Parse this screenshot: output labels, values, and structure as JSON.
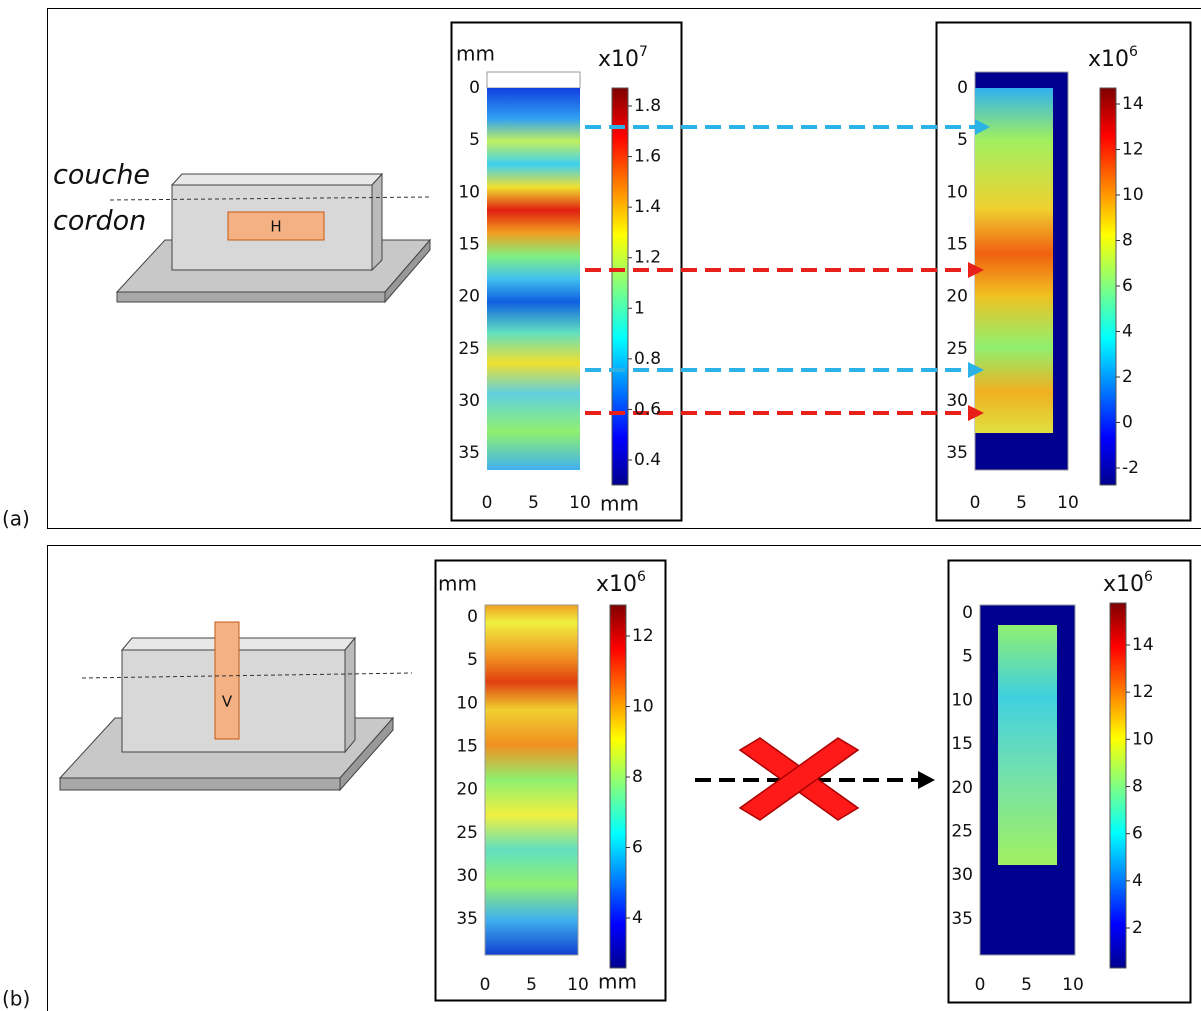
{
  "panels": [
    {
      "label": "(a)",
      "sketch": {
        "labels": [
          "couche",
          "cordon"
        ],
        "tag": "H"
      },
      "maps": [
        {
          "y_unit": "mm",
          "x_unit": "mm",
          "yticks": [
            0,
            5,
            10,
            15,
            20,
            25,
            30,
            35
          ],
          "xticks": [
            0,
            5,
            10
          ],
          "scale": {
            "base": "x10",
            "exp": "7"
          },
          "colorbar_ticks": [
            1.8,
            1.6,
            1.4,
            1.2,
            1,
            0.8,
            0.6,
            0.4
          ]
        },
        {
          "yticks": [
            0,
            5,
            10,
            15,
            20,
            25,
            30,
            35
          ],
          "xticks": [
            0,
            5,
            10
          ],
          "scale": {
            "base": "x10",
            "exp": "6"
          },
          "colorbar_ticks": [
            14,
            12,
            10,
            8,
            6,
            4,
            2,
            0,
            -2
          ]
        }
      ]
    },
    {
      "label": "(b)",
      "sketch": {
        "tag": "V"
      },
      "maps": [
        {
          "y_unit": "mm",
          "x_unit": "mm",
          "yticks": [
            0,
            5,
            10,
            15,
            20,
            25,
            30,
            35
          ],
          "xticks": [
            0,
            5,
            10
          ],
          "scale": {
            "base": "x10",
            "exp": "6"
          },
          "colorbar_ticks": [
            12,
            10,
            8,
            6,
            4
          ]
        },
        {
          "yticks": [
            0,
            5,
            10,
            15,
            20,
            25,
            30,
            35
          ],
          "xticks": [
            0,
            5,
            10
          ],
          "scale": {
            "base": "x10",
            "exp": "6"
          },
          "colorbar_ticks": [
            14,
            12,
            10,
            8,
            6,
            4,
            2
          ]
        }
      ]
    }
  ]
}
